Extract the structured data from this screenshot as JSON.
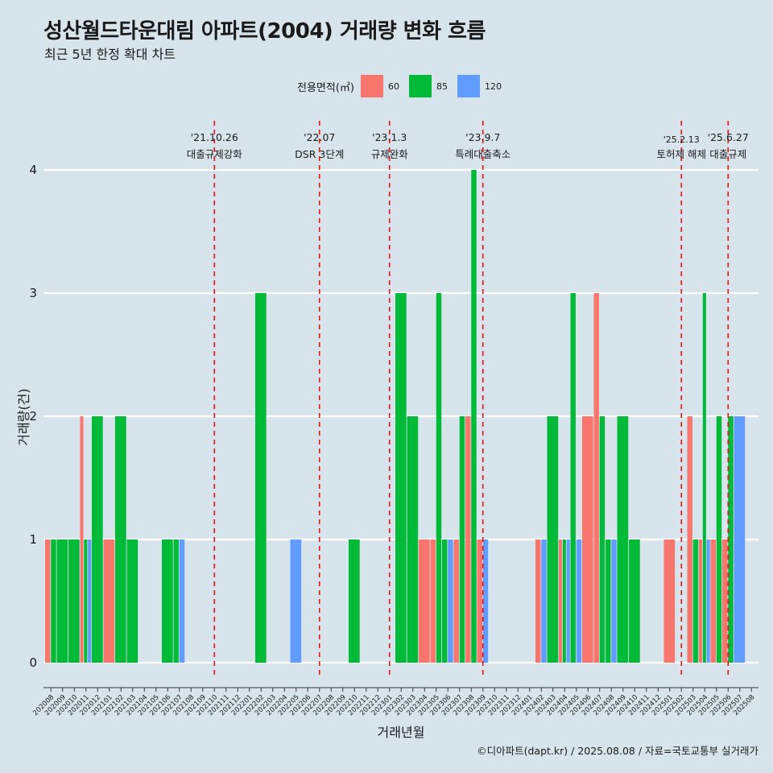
{
  "title": "성산월드타운대림 아파트(2004) 거래량 변화 흐름",
  "subtitle": "최근 5년 한정 확대 차트",
  "caption": "©디아파트(dapt.kr) / 2025.08.08 / 자료=국토교통부 실거래가",
  "legend": {
    "title": "전용면적(㎡)",
    "items": [
      {
        "label": "60",
        "color": "#f8766d"
      },
      {
        "label": "85",
        "color": "#00ba38"
      },
      {
        "label": "120",
        "color": "#619cff"
      }
    ]
  },
  "chart_data": {
    "type": "bar",
    "xlabel": "거래년월",
    "ylabel": "거래량(건)",
    "ylim": [
      0,
      4
    ],
    "yticks": [
      "0",
      "1",
      "2",
      "3",
      "4"
    ],
    "grid": true,
    "legend_position": "top",
    "categories": [
      "202008",
      "202009",
      "202010",
      "202011",
      "202012",
      "202101",
      "202102",
      "202103",
      "202104",
      "202105",
      "202106",
      "202107",
      "202108",
      "202109",
      "202110",
      "202111",
      "202112",
      "202201",
      "202202",
      "202203",
      "202204",
      "202205",
      "202206",
      "202207",
      "202208",
      "202209",
      "202210",
      "202211",
      "202212",
      "202301",
      "202302",
      "202303",
      "202304",
      "202305",
      "202306",
      "202307",
      "202308",
      "202309",
      "202310",
      "202311",
      "202312",
      "202401",
      "202402",
      "202403",
      "202404",
      "202405",
      "202406",
      "202407",
      "202408",
      "202409",
      "202410",
      "202411",
      "202412",
      "202501",
      "202502",
      "202503",
      "202504",
      "202505",
      "202506",
      "202507",
      "202508"
    ],
    "series": [
      {
        "name": "60",
        "color": "#f8766d",
        "values": [
          1,
          0,
          0,
          2,
          0,
          1,
          0,
          0,
          0,
          0,
          0,
          0,
          0,
          0,
          0,
          0,
          0,
          0,
          0,
          0,
          0,
          0,
          0,
          0,
          0,
          0,
          0,
          0,
          0,
          0,
          0,
          0,
          1,
          1,
          0,
          1,
          2,
          1,
          0,
          0,
          0,
          0,
          1,
          0,
          1,
          0,
          2,
          3,
          0,
          0,
          0,
          0,
          0,
          1,
          0,
          2,
          1,
          1,
          1,
          0,
          0
        ]
      },
      {
        "name": "85",
        "color": "#00ba38",
        "values": [
          1,
          1,
          1,
          1,
          2,
          0,
          2,
          1,
          0,
          0,
          1,
          1,
          0,
          0,
          0,
          0,
          0,
          0,
          3,
          0,
          0,
          0,
          0,
          0,
          0,
          0,
          1,
          0,
          0,
          0,
          3,
          2,
          0,
          3,
          1,
          2,
          4,
          0,
          0,
          0,
          0,
          0,
          0,
          2,
          1,
          3,
          0,
          2,
          1,
          2,
          1,
          0,
          0,
          0,
          0,
          1,
          3,
          2,
          2,
          0,
          0
        ]
      },
      {
        "name": "120",
        "color": "#619cff",
        "values": [
          0,
          0,
          0,
          1,
          0,
          0,
          0,
          0,
          0,
          0,
          0,
          1,
          0,
          0,
          0,
          0,
          0,
          0,
          0,
          0,
          0,
          1,
          0,
          0,
          0,
          0,
          0,
          0,
          0,
          0,
          0,
          0,
          0,
          0,
          1,
          0,
          0,
          1,
          0,
          0,
          0,
          0,
          1,
          0,
          1,
          1,
          0,
          0,
          1,
          0,
          0,
          0,
          0,
          0,
          0,
          0,
          1,
          0,
          0,
          2,
          0
        ]
      }
    ],
    "events": [
      {
        "date": "'21.10.26",
        "label": "대출규제강화",
        "month": "202110"
      },
      {
        "date": "'22.07",
        "label": "DSR 3단계",
        "month": "202207"
      },
      {
        "date": "'23.1.3",
        "label": "규제완화",
        "month": "202301"
      },
      {
        "date": "'23.9.7",
        "label": "특례대출축소",
        "month": "202309"
      },
      {
        "date": "'25.2.13",
        "label": "토허제 해제",
        "month": "202502"
      },
      {
        "date": "'25.6.27",
        "label": "대출규제",
        "month": "202506"
      }
    ]
  }
}
